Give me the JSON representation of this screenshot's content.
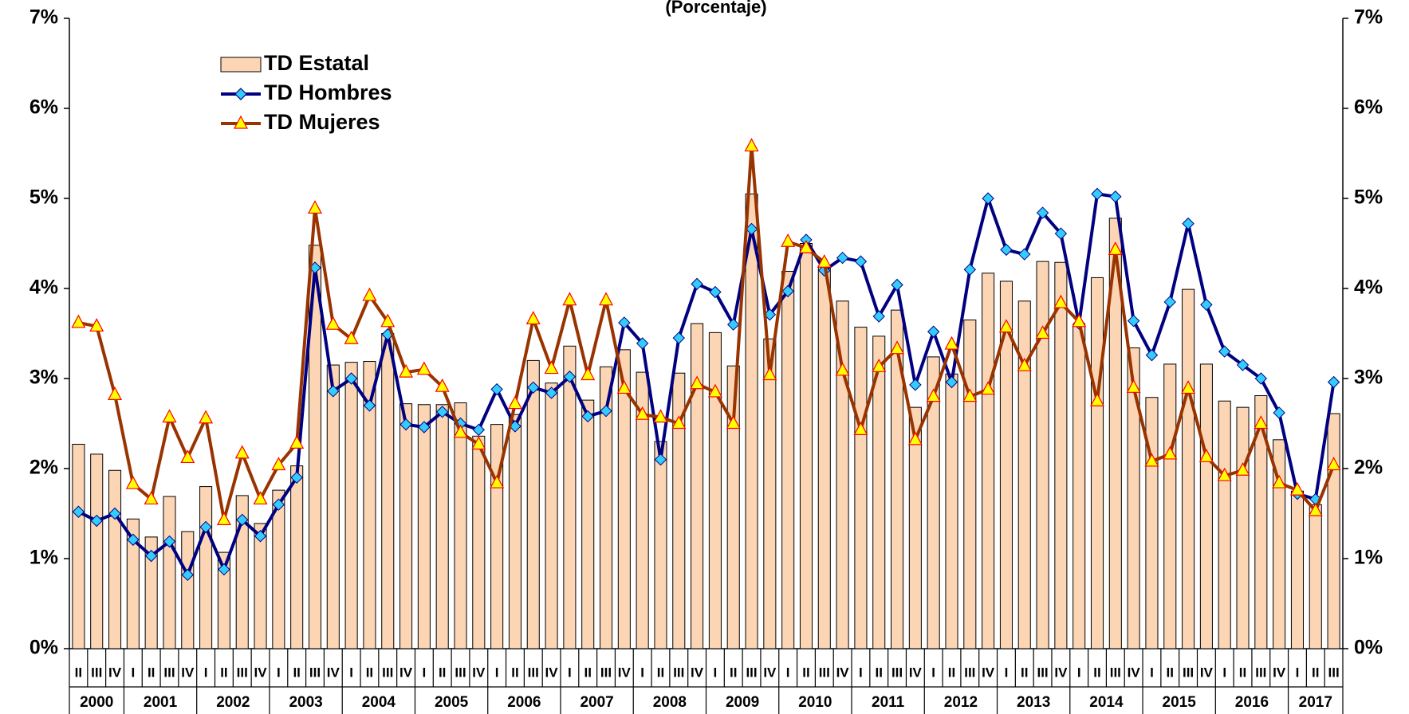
{
  "chart_data": {
    "type": "bar",
    "title": "(Porcentaje)",
    "categories": [
      "II",
      "III",
      "IV",
      "I",
      "II",
      "III",
      "IV",
      "I",
      "II",
      "III",
      "IV",
      "I",
      "II",
      "III",
      "IV",
      "I",
      "II",
      "III",
      "IV",
      "I",
      "II",
      "III",
      "IV",
      "I",
      "II",
      "III",
      "IV",
      "I",
      "II",
      "III",
      "IV",
      "I",
      "II",
      "III",
      "IV",
      "I",
      "II",
      "III",
      "IV",
      "I",
      "II",
      "III",
      "IV",
      "I",
      "II",
      "III",
      "IV",
      "I",
      "II",
      "III",
      "IV",
      "I",
      "II",
      "III",
      "IV",
      "I",
      "II",
      "III",
      "IV",
      "I",
      "II",
      "III",
      "IV",
      "I",
      "II",
      "III",
      "IV",
      "I",
      "II",
      "III"
    ],
    "years": [
      "2000",
      "2001",
      "2002",
      "2003",
      "2004",
      "2005",
      "2006",
      "2007",
      "2008",
      "2009",
      "2010",
      "2011",
      "2012",
      "2013",
      "2014",
      "2015",
      "2016",
      "2017"
    ],
    "series": [
      {
        "name": "TD Estatal",
        "type": "bar",
        "color": "#fcd5b4",
        "values": [
          2.27,
          2.16,
          1.98,
          1.44,
          1.24,
          1.69,
          1.3,
          1.8,
          1.07,
          1.7,
          1.39,
          1.76,
          2.03,
          4.48,
          3.15,
          3.18,
          3.19,
          3.5,
          2.72,
          2.71,
          2.71,
          2.73,
          2.36,
          2.49,
          2.6,
          3.2,
          2.95,
          3.36,
          2.76,
          3.13,
          3.32,
          3.07,
          2.3,
          3.06,
          3.61,
          3.51,
          3.14,
          5.05,
          3.44,
          4.19,
          4.5,
          4.25,
          3.86,
          3.57,
          3.47,
          3.76,
          2.68,
          3.24,
          3.05,
          3.65,
          4.17,
          4.08,
          3.86,
          4.3,
          4.29,
          3.6,
          4.12,
          4.78,
          3.34,
          2.79,
          3.16,
          3.99,
          3.16,
          2.75,
          2.68,
          2.81,
          2.32,
          1.75,
          1.6,
          2.61
        ]
      },
      {
        "name": "TD Hombres",
        "type": "line",
        "color": "#000080",
        "marker": "diamond",
        "marker_color": "#33ccff",
        "values": [
          1.52,
          1.42,
          1.5,
          1.21,
          1.03,
          1.19,
          0.82,
          1.35,
          0.88,
          1.43,
          1.25,
          1.6,
          1.9,
          4.23,
          2.86,
          3.0,
          2.7,
          3.49,
          2.49,
          2.46,
          2.63,
          2.5,
          2.43,
          2.88,
          2.47,
          2.9,
          2.84,
          3.02,
          2.58,
          2.64,
          3.62,
          3.39,
          2.1,
          3.45,
          4.05,
          3.96,
          3.6,
          4.66,
          3.71,
          3.97,
          4.54,
          4.2,
          4.34,
          4.3,
          3.69,
          4.04,
          2.93,
          3.52,
          2.96,
          4.21,
          5.0,
          4.43,
          4.38,
          4.84,
          4.61,
          3.61,
          5.05,
          5.02,
          3.64,
          3.26,
          3.85,
          4.72,
          3.82,
          3.3,
          3.15,
          3.0,
          2.62,
          1.72,
          1.66,
          2.96
        ]
      },
      {
        "name": "TD Mujeres",
        "type": "line",
        "color": "#993300",
        "marker": "triangle",
        "marker_color": "#ffff00",
        "values": [
          3.62,
          3.58,
          2.82,
          1.83,
          1.66,
          2.57,
          2.12,
          2.56,
          1.43,
          2.17,
          1.66,
          2.04,
          2.28,
          4.89,
          3.6,
          3.44,
          3.92,
          3.63,
          3.07,
          3.1,
          2.91,
          2.4,
          2.27,
          1.84,
          2.72,
          3.66,
          3.11,
          3.87,
          3.04,
          3.87,
          2.89,
          2.6,
          2.57,
          2.5,
          2.94,
          2.85,
          2.5,
          5.58,
          3.04,
          4.52,
          4.45,
          4.29,
          3.09,
          2.43,
          3.13,
          3.33,
          2.32,
          2.8,
          3.38,
          2.8,
          2.88,
          3.57,
          3.14,
          3.5,
          3.84,
          3.63,
          2.75,
          4.43,
          2.9,
          2.08,
          2.16,
          2.89,
          2.13,
          1.92,
          1.98,
          2.5,
          1.84,
          1.76,
          1.53,
          2.04
        ]
      }
    ],
    "ylim": [
      0,
      7
    ],
    "yticks": [
      {
        "value": 0,
        "label": "0%"
      },
      {
        "value": 1,
        "label": "1%"
      },
      {
        "value": 2,
        "label": "2%"
      },
      {
        "value": 3,
        "label": "3%"
      },
      {
        "value": 4,
        "label": "4%"
      },
      {
        "value": 5,
        "label": "5%"
      },
      {
        "value": 6,
        "label": "6%"
      },
      {
        "value": 7,
        "label": "7%"
      }
    ],
    "y2lim": [
      0,
      7
    ],
    "y2ticks": [
      {
        "value": 0,
        "label": "0%"
      },
      {
        "value": 1,
        "label": "1%"
      },
      {
        "value": 2,
        "label": "2%"
      },
      {
        "value": 3,
        "label": "3%"
      },
      {
        "value": 4,
        "label": "4%"
      },
      {
        "value": 5,
        "label": "5%"
      },
      {
        "value": 6,
        "label": "6%"
      },
      {
        "value": 7,
        "label": "7%"
      }
    ],
    "grid": false,
    "legend": "upper left"
  }
}
